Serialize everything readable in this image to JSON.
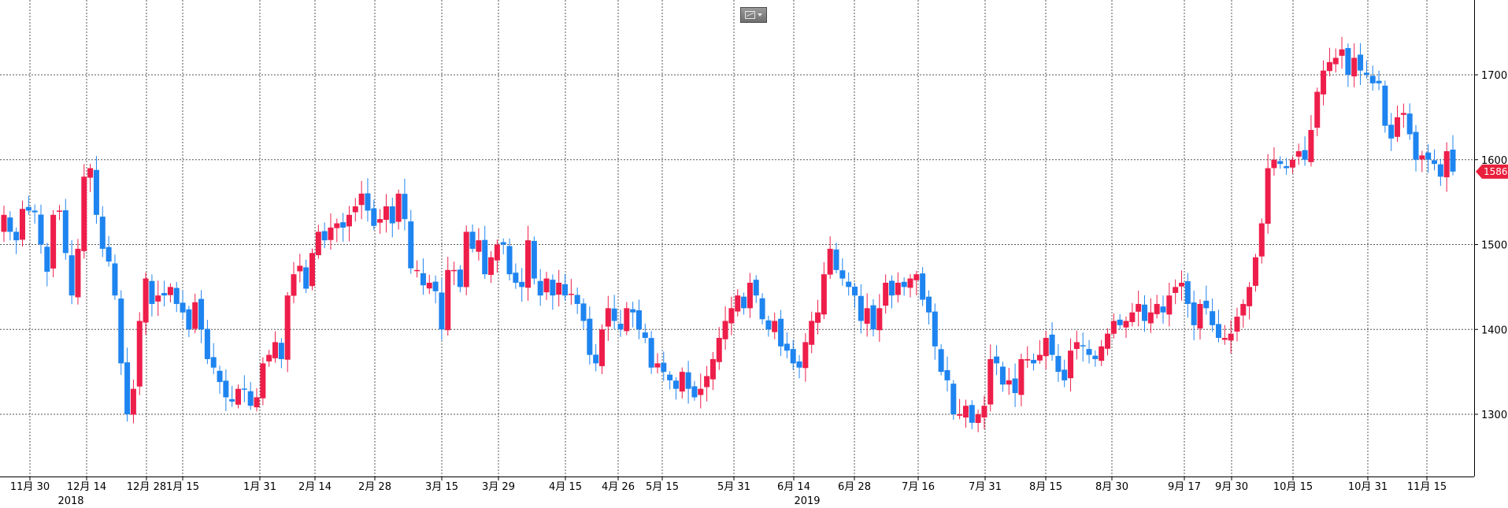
{
  "toolbar": {
    "chart_style_icon": "line-chart-icon",
    "dropdown_icon": "caret-down-icon"
  },
  "colors": {
    "up": "#ee1e4a",
    "down": "#1e84f0",
    "grid": "#555555",
    "price_tag_bg": "#e8203c",
    "price_tag_text": "#ffffff"
  },
  "chart_data": {
    "type": "candlestick",
    "title": "",
    "xlabel": "",
    "ylabel": "",
    "ylim": [
      1225,
      1760
    ],
    "y_ticks": [
      1300,
      1400,
      1500,
      1600,
      1700
    ],
    "y_tick_labels": [
      "1300",
      "1400",
      "1500",
      "1600",
      "1700"
    ],
    "y_axis_position": "right",
    "grid": true,
    "last_price": 1586.0,
    "last_price_label": "1586.0",
    "x_ticks": [
      "11月 30",
      "12月 14",
      "12月 28",
      "1月 15",
      "1月 31",
      "2月 14",
      "2月 28",
      "3月 15",
      "3月 29",
      "4月 15",
      "4月 26",
      "5月 15",
      "5月 31",
      "6月 14",
      "6月 28",
      "7月 16",
      "7月 31",
      "8月 15",
      "8月 30",
      "9月 17",
      "9月 30",
      "10月 15",
      "10月 31",
      "11月 15"
    ],
    "year_labels": [
      "2018",
      "2019"
    ],
    "closes": [
      1535,
      1515,
      1505,
      1542,
      1540,
      1538,
      1500,
      1468,
      1535,
      1540,
      1490,
      1440,
      1495,
      1580,
      1590,
      1535,
      1495,
      1480,
      1440,
      1360,
      1300,
      1330,
      1410,
      1460,
      1430,
      1440,
      1440,
      1450,
      1430,
      1420,
      1400,
      1432,
      1400,
      1365,
      1355,
      1338,
      1320,
      1315,
      1330,
      1330,
      1310,
      1320,
      1360,
      1370,
      1385,
      1365,
      1440,
      1465,
      1475,
      1448,
      1490,
      1515,
      1505,
      1520,
      1525,
      1520,
      1535,
      1545,
      1560,
      1540,
      1522,
      1530,
      1545,
      1525,
      1560,
      1530,
      1472,
      1470,
      1452,
      1455,
      1445,
      1400,
      1470,
      1470,
      1450,
      1515,
      1495,
      1505,
      1465,
      1485,
      1500,
      1500,
      1465,
      1455,
      1450,
      1505,
      1460,
      1440,
      1460,
      1440,
      1455,
      1440,
      1442,
      1430,
      1410,
      1370,
      1360,
      1400,
      1425,
      1410,
      1400,
      1425,
      1420,
      1400,
      1390,
      1355,
      1360,
      1350,
      1340,
      1330,
      1350,
      1330,
      1320,
      1330,
      1345,
      1365,
      1390,
      1410,
      1425,
      1440,
      1425,
      1455,
      1440,
      1412,
      1400,
      1410,
      1380,
      1375,
      1360,
      1355,
      1385,
      1410,
      1420,
      1465,
      1495,
      1470,
      1460,
      1450,
      1440,
      1410,
      1425,
      1400,
      1425,
      1455,
      1440,
      1455,
      1450,
      1460,
      1465,
      1435,
      1420,
      1380,
      1350,
      1340,
      1300,
      1300,
      1310,
      1290,
      1300,
      1310,
      1365,
      1360,
      1335,
      1340,
      1325,
      1365,
      1365,
      1360,
      1370,
      1390,
      1370,
      1350,
      1340,
      1375,
      1385,
      1380,
      1370,
      1365,
      1380,
      1395,
      1410,
      1405,
      1410,
      1420,
      1430,
      1410,
      1420,
      1430,
      1420,
      1440,
      1450,
      1455,
      1430,
      1405,
      1430,
      1425,
      1405,
      1390,
      1390,
      1395,
      1415,
      1430,
      1450,
      1485,
      1525,
      1590,
      1600,
      1595,
      1590,
      1600,
      1610,
      1600,
      1635,
      1680,
      1705,
      1715,
      1720,
      1730,
      1700,
      1720,
      1705,
      1700,
      1690,
      1690,
      1640,
      1625,
      1650,
      1655,
      1630,
      1600,
      1605,
      1600,
      1595,
      1580,
      1610,
      1586
    ]
  }
}
